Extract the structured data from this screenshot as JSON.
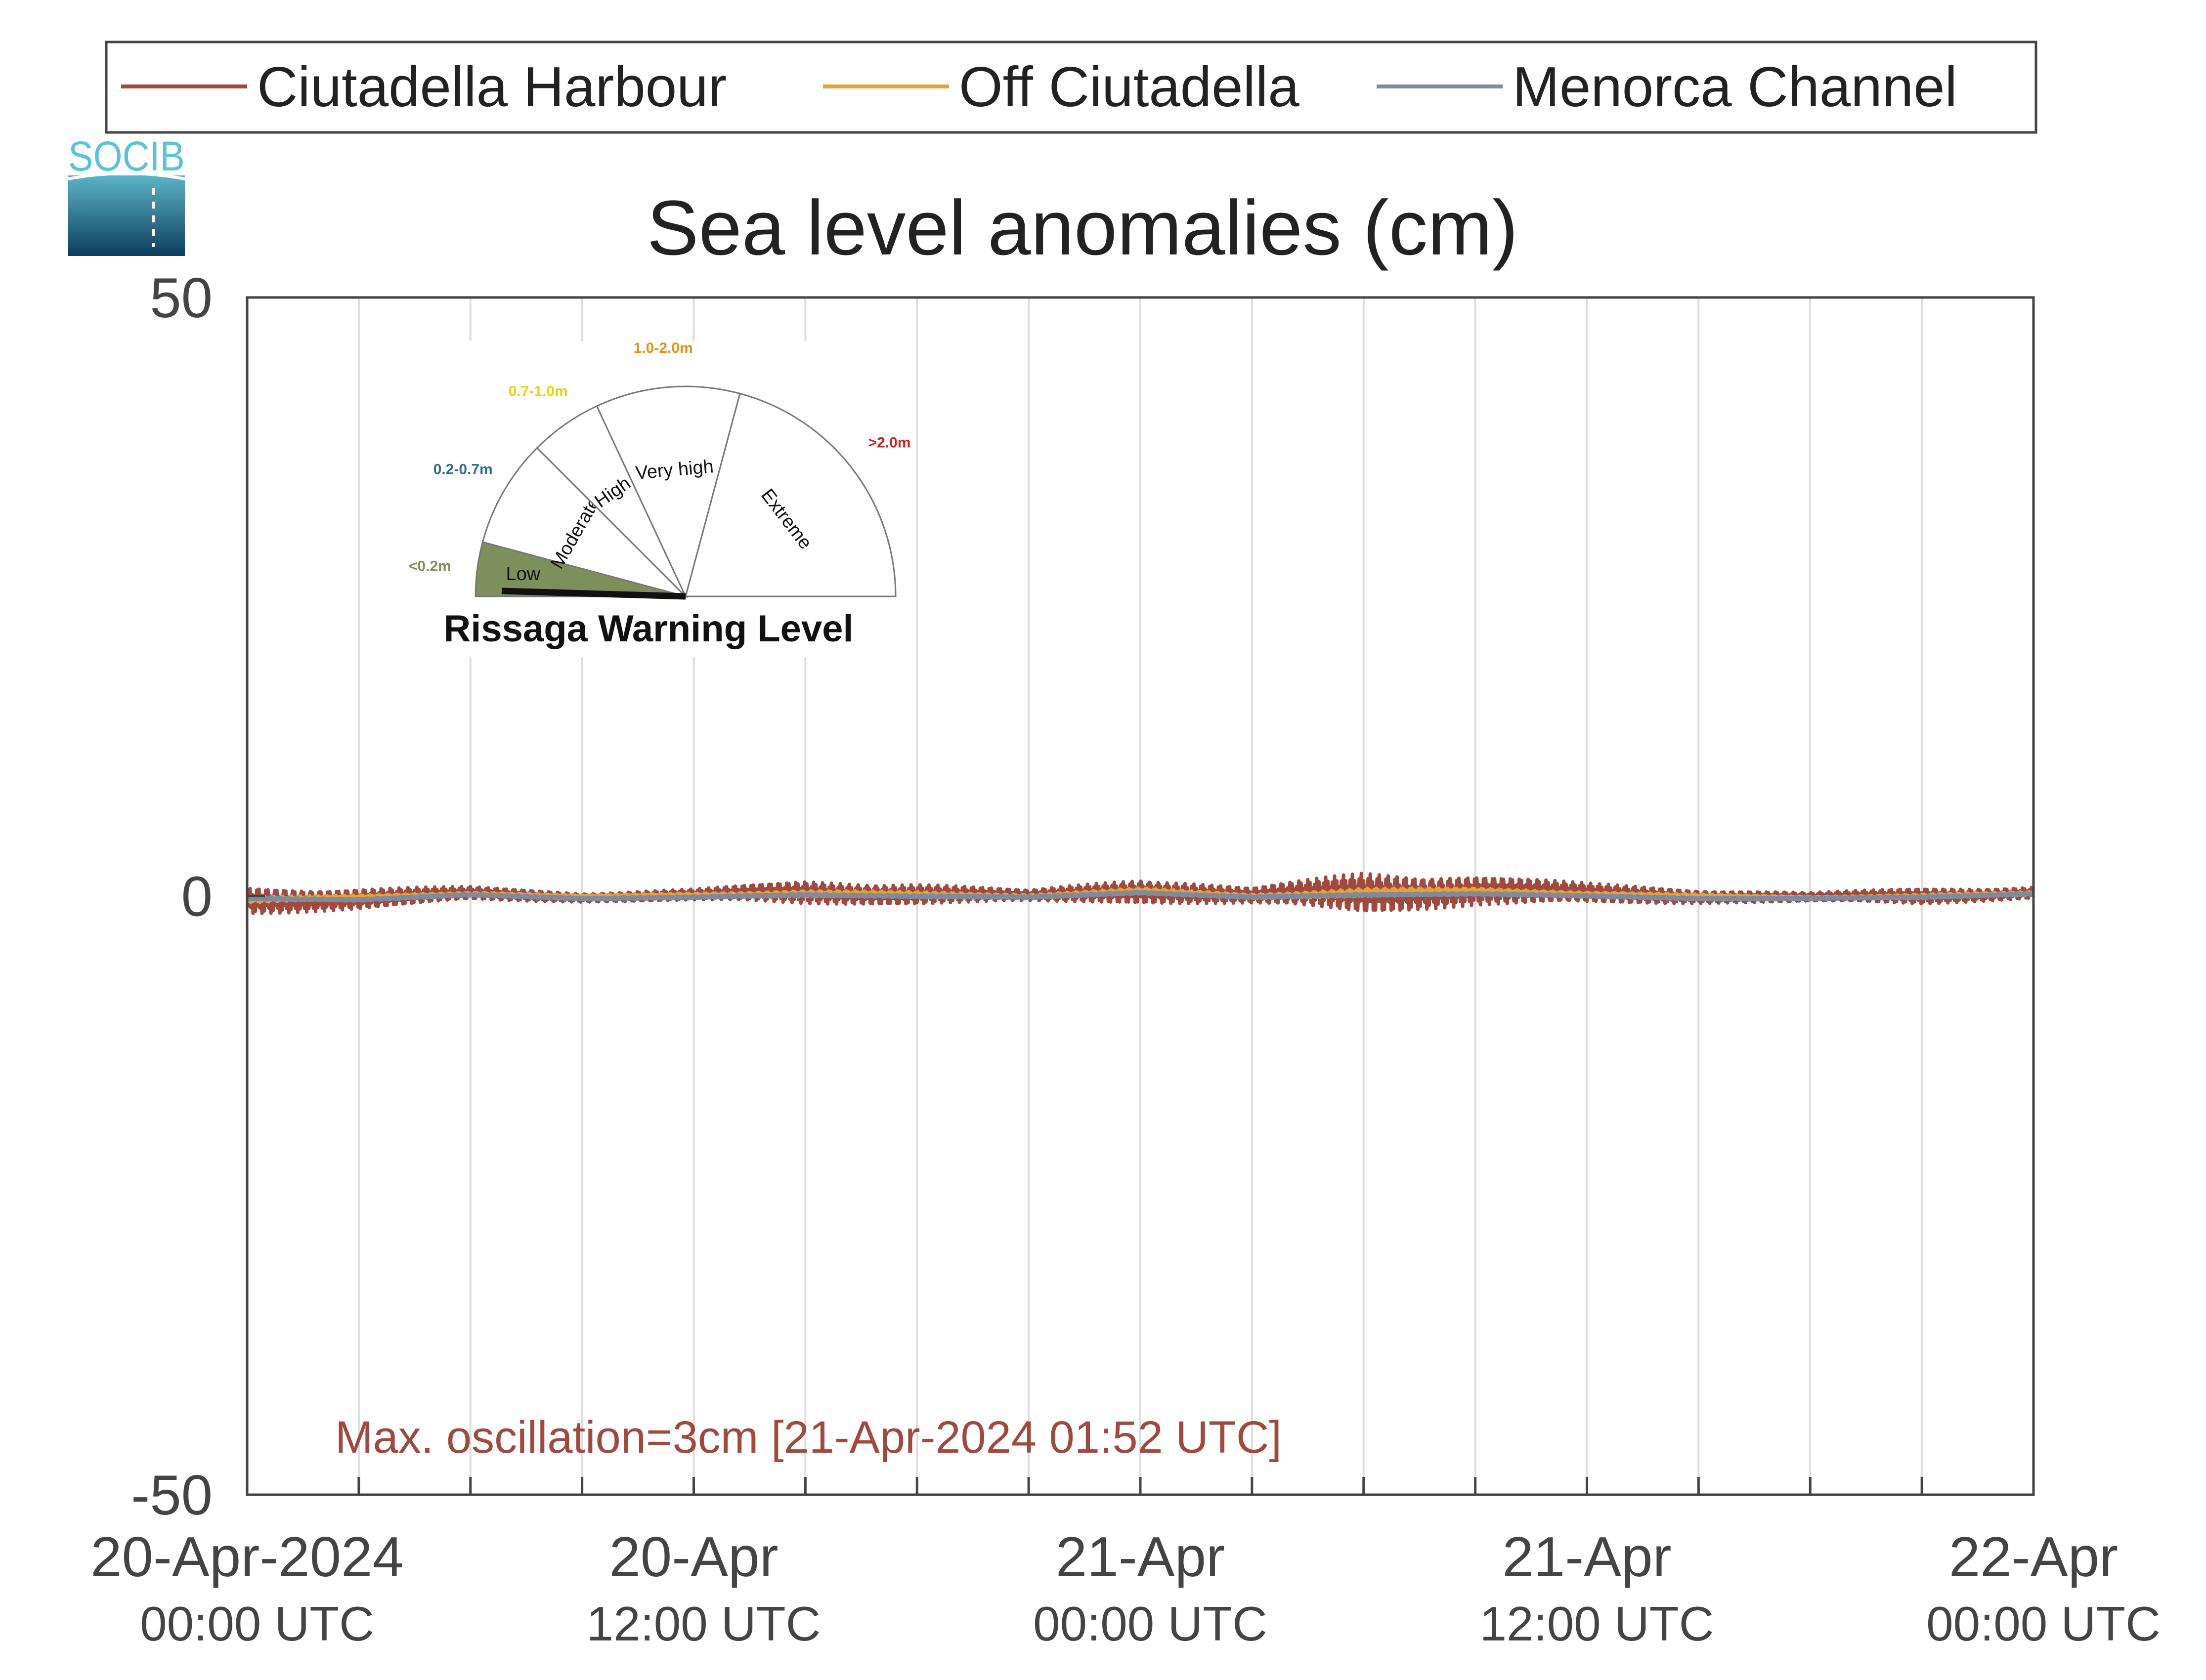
{
  "chart_data": {
    "type": "line",
    "title": "Sea level anomalies (cm)",
    "ylim": [
      -50,
      50
    ],
    "y_ticks": [
      {
        "value": 50,
        "label": "50"
      },
      {
        "value": 0,
        "label": "0"
      },
      {
        "value": -50,
        "label": "-50"
      }
    ],
    "x_range_hours": [
      0,
      48
    ],
    "x_ticks": [
      {
        "hour": 0,
        "date": "20-Apr-2024",
        "time": "00:00 UTC"
      },
      {
        "hour": 12,
        "date": "20-Apr",
        "time": "12:00 UTC"
      },
      {
        "hour": 24,
        "date": "21-Apr",
        "time": "00:00 UTC"
      },
      {
        "hour": 36,
        "date": "21-Apr",
        "time": "12:00 UTC"
      },
      {
        "hour": 48,
        "date": "22-Apr",
        "time": "00:00 UTC"
      }
    ],
    "minor_grid_every_hours": 3,
    "grid": true,
    "legend_position": "top",
    "series": [
      {
        "name": "Ciutadella Harbour",
        "color": "#a0493e",
        "x": [
          0,
          3,
          6,
          9,
          12,
          15,
          18,
          21,
          24,
          27,
          30,
          33,
          36,
          39,
          42,
          45,
          48
        ],
        "y": [
          -0.4,
          -0.2,
          0.2,
          -0.1,
          0.1,
          0.3,
          0.2,
          0.0,
          0.5,
          0.0,
          0.3,
          0.5,
          0.2,
          0.0,
          -0.1,
          0.0,
          0.3
        ],
        "oscillation_amp": [
          1.2,
          0.9,
          0.6,
          0.4,
          0.5,
          1.0,
          0.9,
          0.5,
          1.1,
          0.7,
          1.8,
          1.3,
          0.9,
          0.6,
          0.4,
          0.7,
          0.5
        ]
      },
      {
        "name": "Off Ciutadella",
        "color": "#e3a23a",
        "x": [
          0,
          3,
          6,
          9,
          12,
          15,
          18,
          21,
          24,
          27,
          30,
          33,
          36,
          39,
          42,
          45,
          48
        ],
        "y": [
          -0.3,
          -0.1,
          0.2,
          0.0,
          0.1,
          0.2,
          0.1,
          0.0,
          0.4,
          0.0,
          0.3,
          0.4,
          0.2,
          0.0,
          -0.1,
          0.0,
          0.2
        ],
        "oscillation_amp": [
          0.3,
          0.2,
          0.2,
          0.1,
          0.2,
          0.3,
          0.3,
          0.2,
          0.3,
          0.2,
          0.4,
          0.3,
          0.2,
          0.2,
          0.1,
          0.2,
          0.2
        ]
      },
      {
        "name": "Menorca Channel",
        "color": "#808a9e",
        "x": [
          0,
          3,
          6,
          9,
          12,
          15,
          18,
          21,
          24,
          27,
          30,
          33,
          36,
          39,
          42,
          45,
          48
        ],
        "y": [
          -0.2,
          -0.3,
          0.1,
          -0.2,
          -0.1,
          0.1,
          0.0,
          -0.1,
          0.3,
          -0.1,
          0.1,
          0.2,
          0.0,
          -0.2,
          -0.2,
          -0.1,
          0.2
        ],
        "oscillation_amp": [
          0.1,
          0.1,
          0.1,
          0.1,
          0.1,
          0.1,
          0.1,
          0.1,
          0.1,
          0.1,
          0.1,
          0.1,
          0.1,
          0.1,
          0.1,
          0.1,
          0.1
        ]
      }
    ],
    "annotation": {
      "text": "Max. oscillation=3cm [21-Apr-2024 01:52 UTC]",
      "color": "#a0493e"
    }
  },
  "logo": {
    "text": "SOCIB"
  },
  "warning_gauge": {
    "title": "Rissaga Warning Level",
    "current_level": "Low",
    "levels": [
      {
        "label": "Low",
        "range": "<0.2m",
        "color": "#7d8f5a"
      },
      {
        "label": "Moderate",
        "range": "0.2-0.7m",
        "color": "#2f6f8f"
      },
      {
        "label": "High",
        "range": "0.7-1.0m",
        "color": "#e6d21c"
      },
      {
        "label": "Very high",
        "range": "1.0-2.0m",
        "color": "#e8901c"
      },
      {
        "label": "Extreme",
        "range": ">2.0m",
        "color": "#d42020"
      }
    ]
  }
}
